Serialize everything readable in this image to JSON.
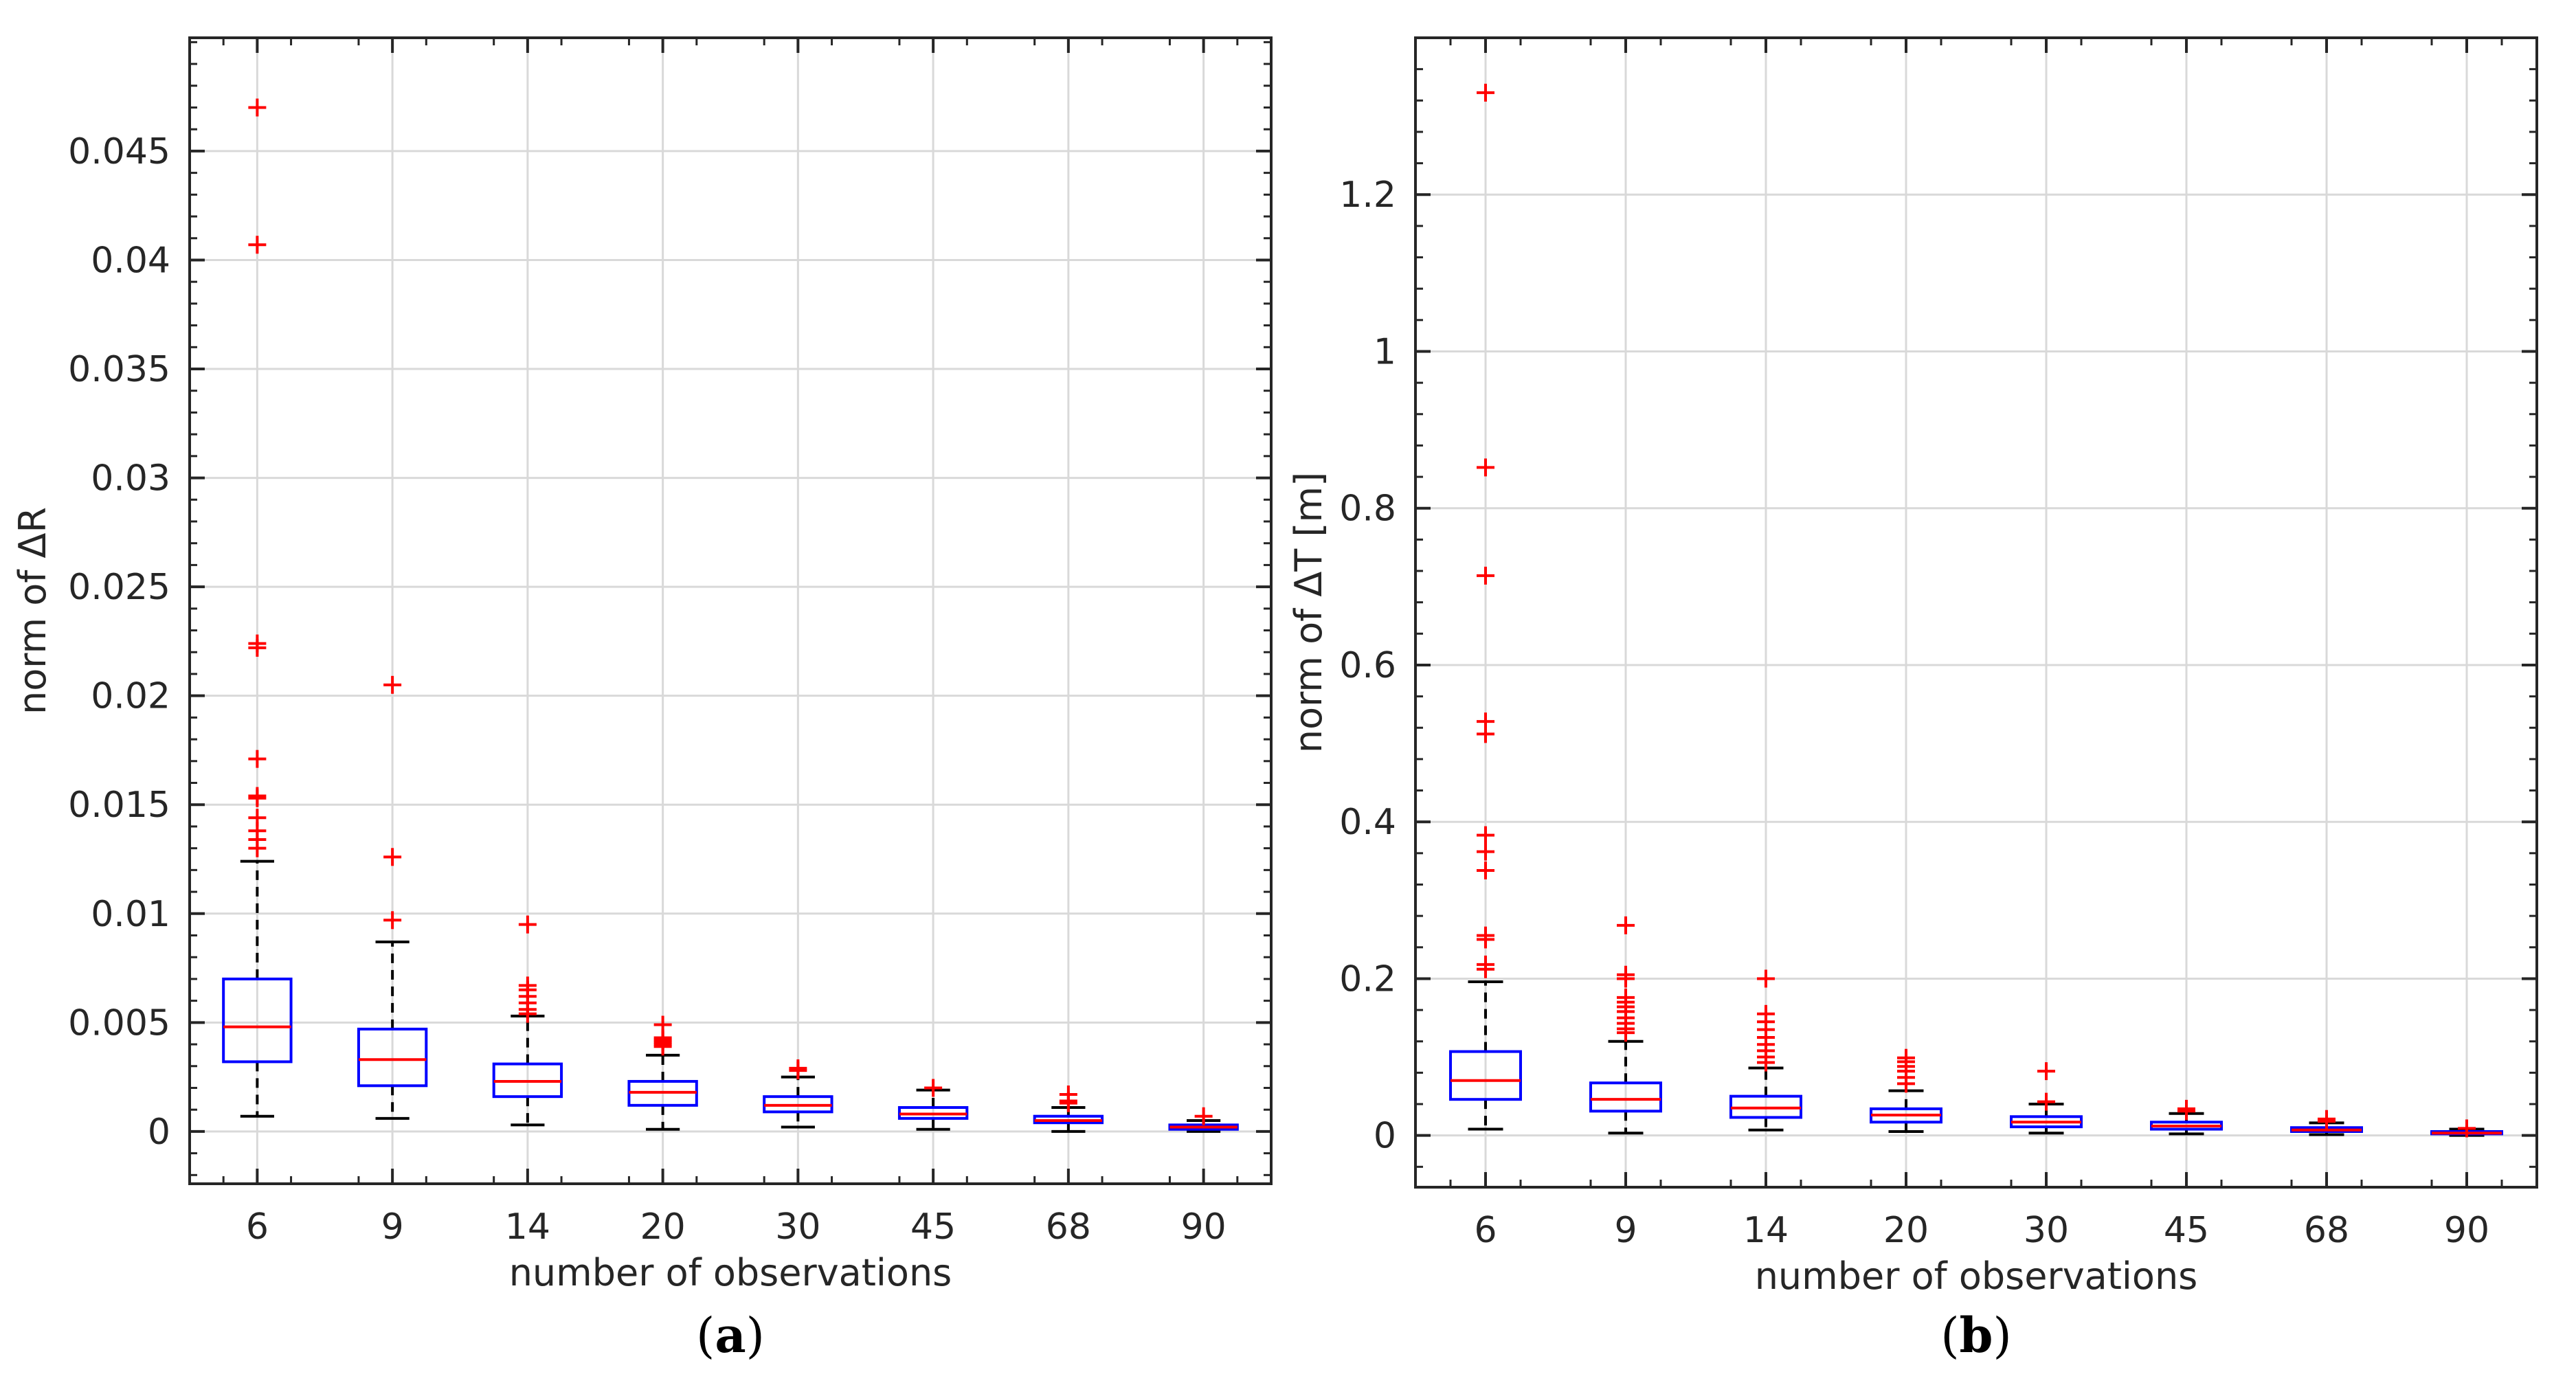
{
  "chart_data": [
    {
      "type": "box",
      "panel_id": "a",
      "caption_open": "(",
      "caption_letter": "a",
      "caption_close": ")",
      "title": "",
      "xlabel": "number of observations",
      "ylabel": "norm of ΔR",
      "categories": [
        "6",
        "9",
        "14",
        "20",
        "30",
        "45",
        "68",
        "90"
      ],
      "ylim": [
        -0.0024,
        0.0502
      ],
      "yticks": [
        0,
        0.005,
        0.01,
        0.015,
        0.02,
        0.025,
        0.03,
        0.035,
        0.04,
        0.045
      ],
      "ytick_labels": [
        "0",
        "0.005",
        "0.01",
        "0.015",
        "0.02",
        "0.025",
        "0.03",
        "0.035",
        "0.04",
        "0.045"
      ],
      "grid": true,
      "boxes": [
        {
          "category": "6",
          "whisker_low": 0.0007,
          "q1": 0.0032,
          "median": 0.0048,
          "q3": 0.007,
          "whisker_high": 0.0124,
          "outliers": [
            0.047,
            0.0407,
            0.0224,
            0.0222,
            0.0171,
            0.0154,
            0.0153,
            0.0144,
            0.0138,
            0.0134,
            0.013
          ]
        },
        {
          "category": "9",
          "whisker_low": 0.0006,
          "q1": 0.0021,
          "median": 0.0033,
          "q3": 0.0047,
          "whisker_high": 0.0087,
          "outliers": [
            0.0205,
            0.0126,
            0.0097
          ]
        },
        {
          "category": "14",
          "whisker_low": 0.0003,
          "q1": 0.0016,
          "median": 0.0023,
          "q3": 0.0031,
          "whisker_high": 0.0053,
          "outliers": [
            0.0095,
            0.0067,
            0.0065,
            0.0062,
            0.0059,
            0.0056,
            0.0054
          ]
        },
        {
          "category": "20",
          "whisker_low": 0.0001,
          "q1": 0.0012,
          "median": 0.0018,
          "q3": 0.0023,
          "whisker_high": 0.0035,
          "outliers": [
            0.0049,
            0.0043,
            0.0042,
            0.0041,
            0.004,
            0.0039
          ]
        },
        {
          "category": "30",
          "whisker_low": 0.0002,
          "q1": 0.0009,
          "median": 0.0012,
          "q3": 0.0016,
          "whisker_high": 0.0025,
          "outliers": [
            0.0029,
            0.0028
          ]
        },
        {
          "category": "45",
          "whisker_low": 0.0001,
          "q1": 0.0006,
          "median": 0.0008,
          "q3": 0.0011,
          "whisker_high": 0.0019,
          "outliers": [
            0.002
          ]
        },
        {
          "category": "68",
          "whisker_low": 0.0,
          "q1": 0.0004,
          "median": 0.0005,
          "q3": 0.0007,
          "whisker_high": 0.0011,
          "outliers": [
            0.0017,
            0.0014,
            0.0013
          ]
        },
        {
          "category": "90",
          "whisker_low": 0.0,
          "q1": 0.0001,
          "median": 0.0002,
          "q3": 0.0003,
          "whisker_high": 0.0005,
          "outliers": [
            0.0007
          ]
        }
      ]
    },
    {
      "type": "box",
      "panel_id": "b",
      "caption_open": "(",
      "caption_letter": "b",
      "caption_close": ")",
      "title": "",
      "xlabel": "number of observations",
      "ylabel": "norm of ΔT [m]",
      "categories": [
        "6",
        "9",
        "14",
        "20",
        "30",
        "45",
        "68",
        "90"
      ],
      "ylim": [
        -0.066,
        1.4
      ],
      "yticks": [
        0,
        0.2,
        0.4,
        0.6,
        0.8,
        1,
        1.2
      ],
      "ytick_labels": [
        "0",
        "0.2",
        "0.4",
        "0.6",
        "0.8",
        "1",
        "1.2"
      ],
      "grid": true,
      "boxes": [
        {
          "category": "6",
          "whisker_low": 0.008,
          "q1": 0.046,
          "median": 0.07,
          "q3": 0.107,
          "whisker_high": 0.196,
          "outliers": [
            1.33,
            0.852,
            0.714,
            0.528,
            0.512,
            0.383,
            0.362,
            0.338,
            0.255,
            0.25,
            0.218,
            0.212
          ]
        },
        {
          "category": "9",
          "whisker_low": 0.003,
          "q1": 0.031,
          "median": 0.046,
          "q3": 0.067,
          "whisker_high": 0.12,
          "outliers": [
            0.268,
            0.205,
            0.2,
            0.176,
            0.17,
            0.164,
            0.158,
            0.15,
            0.143,
            0.136,
            0.131
          ]
        },
        {
          "category": "14",
          "whisker_low": 0.007,
          "q1": 0.023,
          "median": 0.035,
          "q3": 0.05,
          "whisker_high": 0.086,
          "outliers": [
            0.2,
            0.155,
            0.145,
            0.135,
            0.125,
            0.116,
            0.108,
            0.1,
            0.093
          ]
        },
        {
          "category": "20",
          "whisker_low": 0.005,
          "q1": 0.017,
          "median": 0.026,
          "q3": 0.034,
          "whisker_high": 0.057,
          "outliers": [
            0.099,
            0.094,
            0.088,
            0.082,
            0.074,
            0.066
          ]
        },
        {
          "category": "30",
          "whisker_low": 0.003,
          "q1": 0.011,
          "median": 0.017,
          "q3": 0.024,
          "whisker_high": 0.04,
          "outliers": [
            0.082,
            0.043
          ]
        },
        {
          "category": "45",
          "whisker_low": 0.002,
          "q1": 0.008,
          "median": 0.012,
          "q3": 0.017,
          "whisker_high": 0.028,
          "outliers": [
            0.034,
            0.031
          ]
        },
        {
          "category": "68",
          "whisker_low": 0.001,
          "q1": 0.005,
          "median": 0.007,
          "q3": 0.01,
          "whisker_high": 0.016,
          "outliers": [
            0.021,
            0.018
          ]
        },
        {
          "category": "90",
          "whisker_low": 0.0,
          "q1": 0.002,
          "median": 0.003,
          "q3": 0.005,
          "whisker_high": 0.008,
          "outliers": [
            0.009
          ]
        }
      ]
    }
  ],
  "colors": {
    "box": "#0000ff",
    "median": "#ff0000",
    "outlier": "#ff0000",
    "whisker": "#000000",
    "grid": "#d9d9d9",
    "axes": "#262626"
  }
}
